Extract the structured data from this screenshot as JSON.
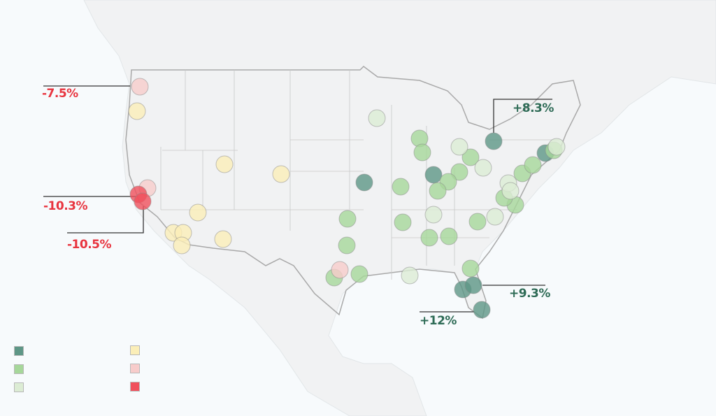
{
  "colors": {
    "strong_gain": "#5e9686",
    "gain": "#a6d79a",
    "slight_gain": "#dcecd4",
    "slight_loss": "#fbeeb8",
    "loss": "#f7cccb",
    "strong_loss": "#f0505c",
    "neg_label": "#e8343f",
    "pos_label": "#2e6b56"
  },
  "callouts": [
    {
      "text": "-7.5%",
      "tone": "neg"
    },
    {
      "text": "-10.3%",
      "tone": "neg"
    },
    {
      "text": "-10.5%",
      "tone": "neg"
    },
    {
      "text": "+8.3%",
      "tone": "pos"
    },
    {
      "text": "+9.3%",
      "tone": "pos"
    },
    {
      "text": "+12%",
      "tone": "pos"
    }
  ],
  "legend": [
    "strong_gain",
    "gain",
    "slight_gain",
    "slight_loss",
    "loss",
    "strong_loss"
  ]
}
